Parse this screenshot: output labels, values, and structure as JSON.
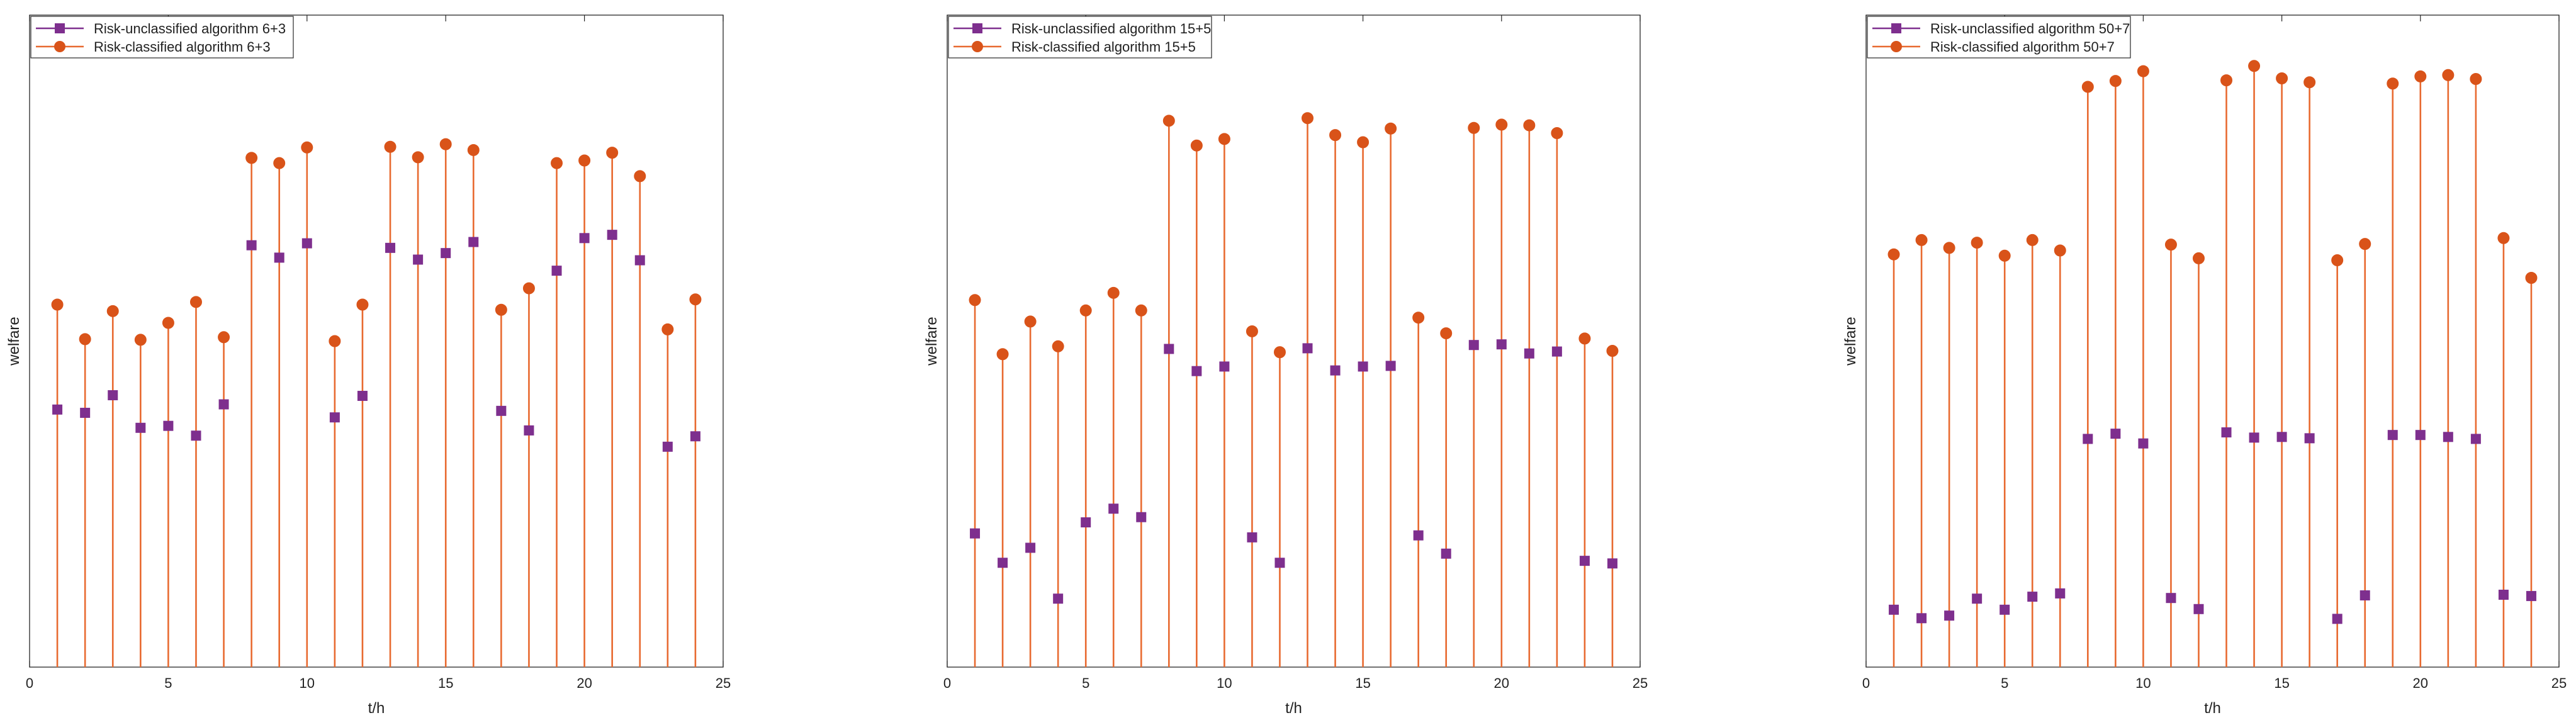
{
  "colors": {
    "unclassified": "#7E2F8E",
    "classified": "#D95319",
    "stem": "#E86A30",
    "axis": "#262626",
    "background": "#FFFFFF"
  },
  "chart_data": [
    {
      "type": "stem",
      "title": "",
      "xlabel": "t/h",
      "ylabel": "welfare",
      "xlim": [
        0,
        25
      ],
      "ylim": [
        0,
        1
      ],
      "xticks": [
        0,
        5,
        10,
        15,
        20,
        25
      ],
      "legend_position": "top-left",
      "x": [
        1,
        2,
        3,
        4,
        5,
        6,
        7,
        8,
        9,
        10,
        11,
        12,
        13,
        14,
        15,
        16,
        17,
        18,
        19,
        20,
        21,
        22,
        23,
        24
      ],
      "series": [
        {
          "name": "Risk-unclassified algorithm 6+3",
          "marker": "square",
          "values": [
            0.395,
            0.39,
            0.417,
            0.367,
            0.37,
            0.355,
            0.403,
            0.647,
            0.628,
            0.65,
            0.383,
            0.416,
            0.643,
            0.625,
            0.635,
            0.652,
            0.393,
            0.363,
            0.608,
            0.658,
            0.663,
            0.624,
            0.338,
            0.354
          ]
        },
        {
          "name": "Risk-classified algorithm 6+3",
          "marker": "circle",
          "values": [
            0.556,
            0.503,
            0.546,
            0.502,
            0.528,
            0.56,
            0.506,
            0.781,
            0.773,
            0.797,
            0.5,
            0.556,
            0.798,
            0.782,
            0.802,
            0.793,
            0.548,
            0.581,
            0.773,
            0.777,
            0.789,
            0.753,
            0.518,
            0.564
          ]
        }
      ]
    },
    {
      "type": "stem",
      "title": "",
      "xlabel": "t/h",
      "ylabel": "welfare",
      "xlim": [
        0,
        25
      ],
      "ylim": [
        0,
        1
      ],
      "xticks": [
        0,
        5,
        10,
        15,
        20,
        25
      ],
      "legend_position": "top-left",
      "x": [
        1,
        2,
        3,
        4,
        5,
        6,
        7,
        8,
        9,
        10,
        11,
        12,
        13,
        14,
        15,
        16,
        17,
        18,
        19,
        20,
        21,
        22,
        23,
        24
      ],
      "series": [
        {
          "name": "Risk-unclassified algorithm 15+5",
          "marker": "square",
          "values": [
            0.205,
            0.16,
            0.183,
            0.105,
            0.222,
            0.243,
            0.23,
            0.488,
            0.454,
            0.461,
            0.199,
            0.16,
            0.489,
            0.455,
            0.461,
            0.462,
            0.202,
            0.174,
            0.494,
            0.495,
            0.481,
            0.484,
            0.163,
            0.159
          ]
        },
        {
          "name": "Risk-classified algorithm 15+5",
          "marker": "circle",
          "values": [
            0.563,
            0.48,
            0.53,
            0.492,
            0.547,
            0.574,
            0.547,
            0.838,
            0.8,
            0.81,
            0.515,
            0.483,
            0.842,
            0.816,
            0.805,
            0.826,
            0.536,
            0.512,
            0.827,
            0.832,
            0.831,
            0.819,
            0.504,
            0.485
          ]
        }
      ]
    },
    {
      "type": "stem",
      "title": "",
      "xlabel": "t/h",
      "ylabel": "welfare",
      "xlim": [
        0,
        25
      ],
      "ylim": [
        0,
        1
      ],
      "xticks": [
        0,
        5,
        10,
        15,
        20,
        25
      ],
      "legend_position": "top-left",
      "x": [
        1,
        2,
        3,
        4,
        5,
        6,
        7,
        8,
        9,
        10,
        11,
        12,
        13,
        14,
        15,
        16,
        17,
        18,
        19,
        20,
        21,
        22,
        23,
        24
      ],
      "series": [
        {
          "name": "Risk-unclassified algorithm 50+7",
          "marker": "square",
          "values": [
            0.088,
            0.075,
            0.079,
            0.105,
            0.088,
            0.108,
            0.113,
            0.35,
            0.358,
            0.343,
            0.106,
            0.089,
            0.36,
            0.352,
            0.353,
            0.351,
            0.074,
            0.11,
            0.356,
            0.356,
            0.353,
            0.35,
            0.111,
            0.109
          ]
        },
        {
          "name": "Risk-classified algorithm 50+7",
          "marker": "circle",
          "values": [
            0.633,
            0.655,
            0.643,
            0.651,
            0.631,
            0.655,
            0.639,
            0.89,
            0.899,
            0.914,
            0.648,
            0.627,
            0.9,
            0.922,
            0.903,
            0.897,
            0.624,
            0.649,
            0.895,
            0.906,
            0.908,
            0.902,
            0.658,
            0.597
          ]
        }
      ]
    }
  ]
}
